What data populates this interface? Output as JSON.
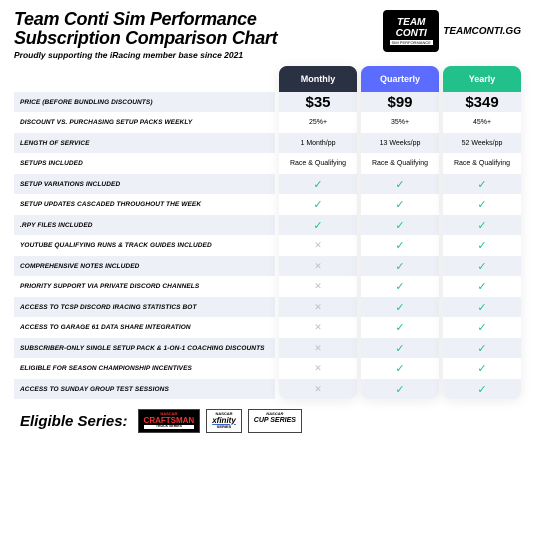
{
  "header": {
    "title_line1": "Team Conti Sim Performance",
    "title_line2": "Subscription Comparison Chart",
    "subtitle": "Proudly supporting the iRacing member base since 2021",
    "logo_team": "TEAM",
    "logo_conti": "CONTI",
    "logo_sub": "SIM PERFORMANCE",
    "site": "TEAMCONTI.GG"
  },
  "styling": {
    "row_shade_bg": "#eef0f7",
    "check_color": "#22c08b",
    "cross_color": "#c0c0c8",
    "plan_header_colors": [
      "#2a3142",
      "#5b6cff",
      "#22c08b"
    ]
  },
  "plans": [
    {
      "name": "Monthly",
      "price": "$35",
      "header_bg": "#2a3142"
    },
    {
      "name": "Quarterly",
      "price": "$99",
      "header_bg": "#5b6cff"
    },
    {
      "name": "Yearly",
      "price": "$349",
      "header_bg": "#22c08b"
    }
  ],
  "features": [
    {
      "label": "Price (Before Bundling Discounts)",
      "values": [
        "$35",
        "$99",
        "$349"
      ],
      "type": "price"
    },
    {
      "label": "Discount vs. Purchasing Setup Packs Weekly",
      "values": [
        "25%+",
        "35%+",
        "45%+"
      ],
      "type": "text"
    },
    {
      "label": "Length of Service",
      "values": [
        "1 Month/pp",
        "13 Weeks/pp",
        "52 Weeks/pp"
      ],
      "type": "text"
    },
    {
      "label": "Setups Included",
      "values": [
        "Race & Qualifying",
        "Race & Qualifying",
        "Race & Qualifying"
      ],
      "type": "text"
    },
    {
      "label": "Setup Variations Included",
      "values": [
        true,
        true,
        true
      ],
      "type": "bool"
    },
    {
      "label": "Setup Updates Cascaded Throughout the Week",
      "values": [
        true,
        true,
        true
      ],
      "type": "bool"
    },
    {
      "label": ".RPY Files Included",
      "values": [
        true,
        true,
        true
      ],
      "type": "bool"
    },
    {
      "label": "YouTube Qualifying Runs & Track Guides Included",
      "values": [
        false,
        true,
        true
      ],
      "type": "bool"
    },
    {
      "label": "Comprehensive Notes Included",
      "values": [
        false,
        true,
        true
      ],
      "type": "bool"
    },
    {
      "label": "Priority Support via Private Discord Channels",
      "values": [
        false,
        true,
        true
      ],
      "type": "bool"
    },
    {
      "label": "Access to TCSP Discord iRacing Statistics Bot",
      "values": [
        false,
        true,
        true
      ],
      "type": "bool"
    },
    {
      "label": "Access to Garage 61 Data Share Integration",
      "values": [
        false,
        true,
        true
      ],
      "type": "bool"
    },
    {
      "label": "Subscriber-Only Single Setup Pack & 1-on-1 Coaching Discounts",
      "values": [
        false,
        true,
        true
      ],
      "type": "bool"
    },
    {
      "label": "Eligible for Season Championship Incentives",
      "values": [
        false,
        true,
        true
      ],
      "type": "bool"
    },
    {
      "label": "Access to Sunday Group Test Sessions",
      "values": [
        false,
        true,
        true
      ],
      "type": "bool"
    }
  ],
  "footer": {
    "eligible_label": "Eligible Series:",
    "series": [
      {
        "top": "NASCAR",
        "main": "CRAFTSMAN",
        "sub": "TRUCK SERIES",
        "style": "craftsman"
      },
      {
        "top": "NASCAR",
        "main": "xfinity",
        "sub": "SERIES",
        "style": "xfinity"
      },
      {
        "top": "NASCAR",
        "main": "CUP SERIES",
        "sub": "",
        "style": "cup"
      }
    ]
  }
}
